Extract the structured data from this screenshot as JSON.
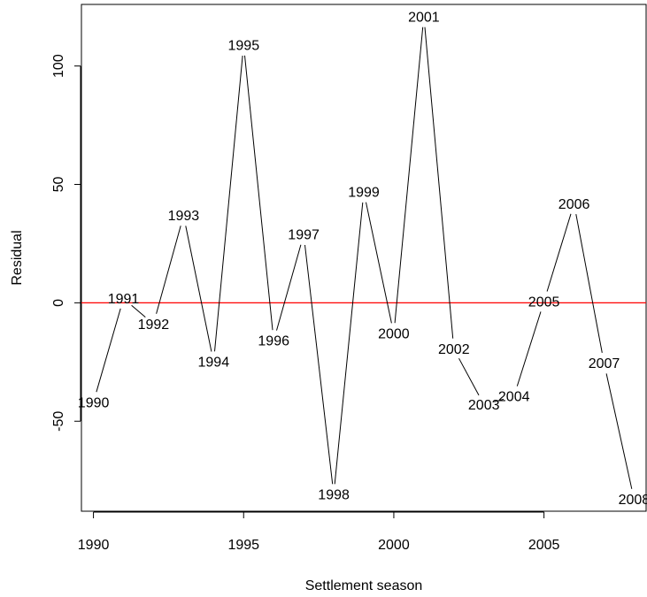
{
  "chart_data": {
    "type": "line",
    "title": "",
    "xlabel": "Settlement season",
    "ylabel": "Residual",
    "xlim": [
      1989.6,
      2008.4
    ],
    "ylim": [
      -88,
      126
    ],
    "x_ticks": [
      1990,
      1995,
      2000,
      2005
    ],
    "y_ticks": [
      -50,
      0,
      50,
      100
    ],
    "grid": false,
    "legend": "none",
    "line_color": "#000000",
    "reference_line": {
      "y": 0,
      "color": "#ff0000"
    },
    "points": [
      {
        "x": 1990,
        "y": -36,
        "label": "1990"
      },
      {
        "x": 1991,
        "y": -3,
        "label": "1991"
      },
      {
        "x": 1992,
        "y": -3,
        "label": "1992"
      },
      {
        "x": 1993,
        "y": 32,
        "label": "1993"
      },
      {
        "x": 1994,
        "y": -19,
        "label": "1994"
      },
      {
        "x": 1995,
        "y": 104,
        "label": "1995"
      },
      {
        "x": 1996,
        "y": -10,
        "label": "1996"
      },
      {
        "x": 1997,
        "y": 24,
        "label": "1997"
      },
      {
        "x": 1998,
        "y": -75,
        "label": "1998"
      },
      {
        "x": 1999,
        "y": 42,
        "label": "1999"
      },
      {
        "x": 2000,
        "y": -7,
        "label": "2000"
      },
      {
        "x": 2001,
        "y": 116,
        "label": "2001"
      },
      {
        "x": 2002,
        "y": -24,
        "label": "2002"
      },
      {
        "x": 2003,
        "y": -37,
        "label": "2003"
      },
      {
        "x": 2004,
        "y": -35,
        "label": "2004"
      },
      {
        "x": 2005,
        "y": 5,
        "label": "2005"
      },
      {
        "x": 2006,
        "y": 37,
        "label": "2006"
      },
      {
        "x": 2007,
        "y": -30,
        "label": "2007"
      },
      {
        "x": 2008,
        "y": -77,
        "label": "2008"
      }
    ]
  }
}
